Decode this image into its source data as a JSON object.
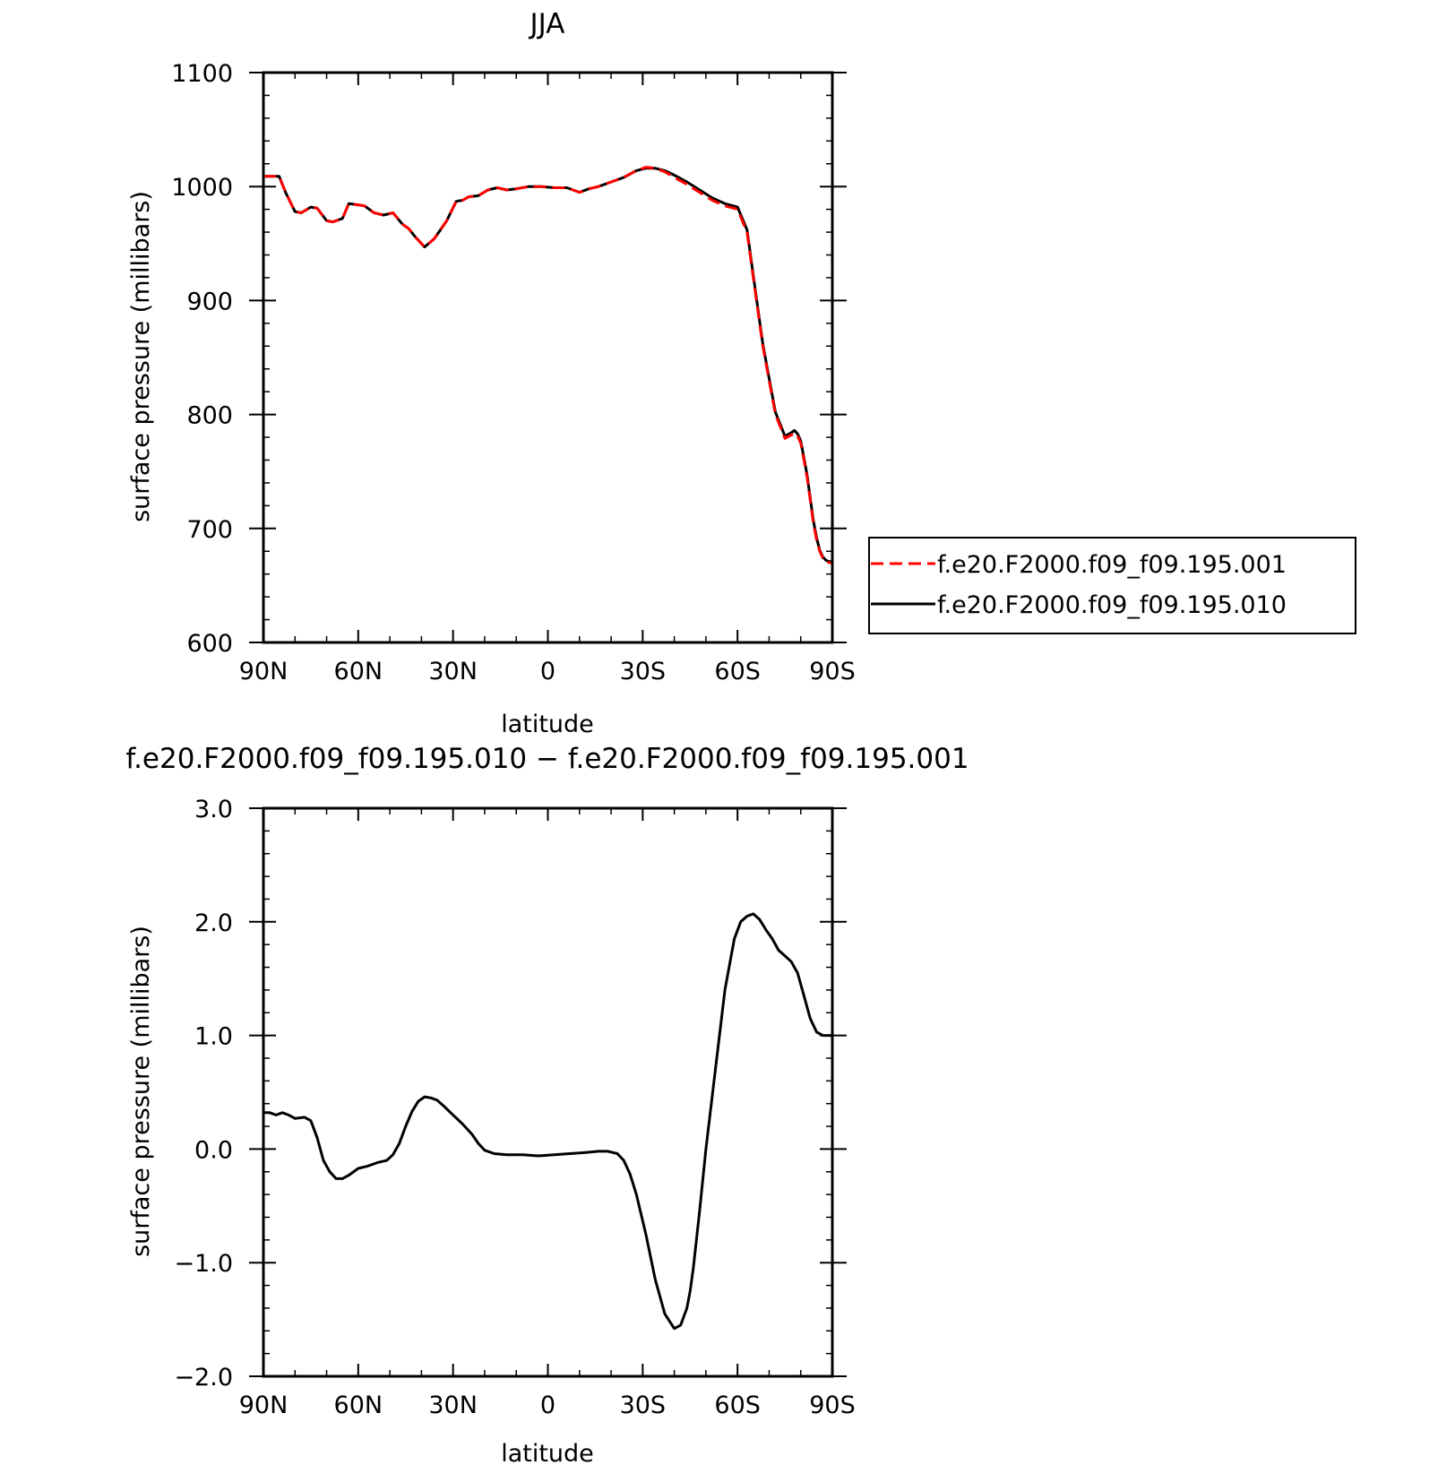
{
  "chart_data": [
    {
      "type": "line",
      "title": "JJA",
      "xlabel": "latitude",
      "ylabel": "surface pressure (millibars)",
      "xlim": [
        90,
        -90
      ],
      "ylim": [
        600,
        1100
      ],
      "x_ticks": [
        {
          "value": 90,
          "label": "90N"
        },
        {
          "value": 60,
          "label": "60N"
        },
        {
          "value": 30,
          "label": "30N"
        },
        {
          "value": 0,
          "label": "0"
        },
        {
          "value": -30,
          "label": "30S"
        },
        {
          "value": -60,
          "label": "60S"
        },
        {
          "value": -90,
          "label": "90S"
        }
      ],
      "y_ticks": [
        {
          "value": 600,
          "label": "600"
        },
        {
          "value": 700,
          "label": "700"
        },
        {
          "value": 800,
          "label": "800"
        },
        {
          "value": 900,
          "label": "900"
        },
        {
          "value": 1000,
          "label": "1000"
        },
        {
          "value": 1100,
          "label": "1100"
        }
      ],
      "grid": false,
      "legend_position": "right",
      "x": [
        90,
        85,
        83,
        80,
        78,
        75,
        73,
        70,
        68,
        65,
        63,
        60,
        58,
        55,
        52,
        49,
        46,
        44,
        42,
        39,
        36,
        34,
        32,
        29,
        27,
        25,
        22,
        19,
        16,
        13,
        10,
        6,
        2,
        -2,
        -6,
        -10,
        -13,
        -16,
        -20,
        -24,
        -28,
        -31,
        -34,
        -37,
        -40,
        -44,
        -48,
        -52,
        -56,
        -60,
        -63,
        -65,
        -66,
        -68,
        -70,
        -72,
        -75,
        -77,
        -78,
        -79,
        -80,
        -81,
        -82,
        -83,
        -84,
        -85,
        -86,
        -87,
        -88,
        -89,
        -90
      ],
      "series": [
        {
          "name": "f.e20.F2000.f09_f09.195.001",
          "color": "#ff0000",
          "dash": "dashed",
          "values": [
            1009,
            1009,
            995,
            978,
            977,
            982,
            981,
            970,
            969,
            972,
            985,
            984,
            983,
            977,
            975,
            977,
            967,
            963,
            956,
            947,
            954,
            962,
            970,
            987,
            988,
            991,
            992,
            997,
            999,
            997,
            998,
            1000,
            1000,
            999,
            999,
            995,
            998,
            1000,
            1004,
            1008,
            1014,
            1017,
            1016,
            1013,
            1008,
            1002,
            995,
            988,
            983,
            980,
            960,
            920,
            900,
            860,
            830,
            800,
            779,
            782,
            784,
            781,
            775,
            760,
            745,
            725,
            705,
            690,
            680,
            674,
            671,
            670,
            670
          ]
        },
        {
          "name": "f.e20.F2000.f09_f09.195.010",
          "color": "#000000",
          "dash": "solid",
          "values": [
            1009,
            1009,
            995,
            978,
            977,
            982,
            981,
            970,
            969,
            972,
            985,
            984,
            983,
            977,
            975,
            977,
            967,
            963,
            956,
            947,
            954,
            962,
            970,
            987,
            988,
            991,
            992,
            997,
            999,
            997,
            998,
            1000,
            1000,
            999,
            999,
            995,
            998,
            1000,
            1004,
            1008,
            1014,
            1016,
            1016,
            1014,
            1010,
            1004,
            997,
            990,
            985,
            982,
            962,
            922,
            902,
            862,
            832,
            802,
            781,
            784,
            786,
            783,
            777,
            762,
            747,
            727,
            707,
            692,
            681,
            675,
            672,
            671,
            671
          ]
        }
      ]
    },
    {
      "type": "line",
      "title": "f.e20.F2000.f09_f09.195.010 − f.e20.F2000.f09_f09.195.001",
      "xlabel": "latitude",
      "ylabel": "surface pressure (millibars)",
      "xlim": [
        90,
        -90
      ],
      "ylim": [
        -2.0,
        3.0
      ],
      "x_ticks": [
        {
          "value": 90,
          "label": "90N"
        },
        {
          "value": 60,
          "label": "60N"
        },
        {
          "value": 30,
          "label": "30N"
        },
        {
          "value": 0,
          "label": "0"
        },
        {
          "value": -30,
          "label": "30S"
        },
        {
          "value": -60,
          "label": "60S"
        },
        {
          "value": -90,
          "label": "90S"
        }
      ],
      "y_ticks": [
        {
          "value": -2.0,
          "label": "−2.0"
        },
        {
          "value": -1.0,
          "label": "−1.0"
        },
        {
          "value": 0.0,
          "label": "0.0"
        },
        {
          "value": 1.0,
          "label": "1.0"
        },
        {
          "value": 2.0,
          "label": "2.0"
        },
        {
          "value": 3.0,
          "label": "3.0"
        }
      ],
      "grid": false,
      "x": [
        90,
        88,
        86,
        84,
        82,
        80,
        77,
        75,
        73,
        71,
        69,
        67,
        65,
        63,
        60,
        57,
        54,
        51,
        49,
        47,
        45,
        43,
        41,
        39,
        37,
        35,
        33,
        30,
        27,
        24,
        22,
        20,
        17,
        13,
        8,
        3,
        -2,
        -7,
        -12,
        -16,
        -19,
        -22,
        -24,
        -26,
        -28,
        -31,
        -34,
        -37,
        -40,
        -42,
        -44,
        -45,
        -46,
        -48,
        -50,
        -53,
        -56,
        -59,
        -61,
        -63,
        -65,
        -67,
        -69,
        -71,
        -73,
        -75,
        -77,
        -79,
        -81,
        -83,
        -85,
        -87,
        -88,
        -89,
        -90
      ],
      "series": [
        {
          "name": "",
          "color": "#000000",
          "dash": "solid",
          "values": [
            0.32,
            0.32,
            0.3,
            0.32,
            0.3,
            0.27,
            0.28,
            0.25,
            0.1,
            -0.1,
            -0.2,
            -0.26,
            -0.26,
            -0.23,
            -0.17,
            -0.15,
            -0.12,
            -0.1,
            -0.05,
            0.05,
            0.2,
            0.33,
            0.42,
            0.46,
            0.45,
            0.43,
            0.38,
            0.3,
            0.22,
            0.13,
            0.05,
            -0.01,
            -0.04,
            -0.05,
            -0.05,
            -0.06,
            -0.05,
            -0.04,
            -0.03,
            -0.02,
            -0.02,
            -0.04,
            -0.1,
            -0.22,
            -0.4,
            -0.75,
            -1.15,
            -1.45,
            -1.58,
            -1.55,
            -1.4,
            -1.25,
            -1.05,
            -0.55,
            0.0,
            0.7,
            1.4,
            1.85,
            2.0,
            2.05,
            2.07,
            2.02,
            1.93,
            1.85,
            1.75,
            1.7,
            1.65,
            1.55,
            1.35,
            1.15,
            1.03,
            1.0,
            1.0,
            1.0,
            1.0
          ]
        }
      ]
    }
  ]
}
